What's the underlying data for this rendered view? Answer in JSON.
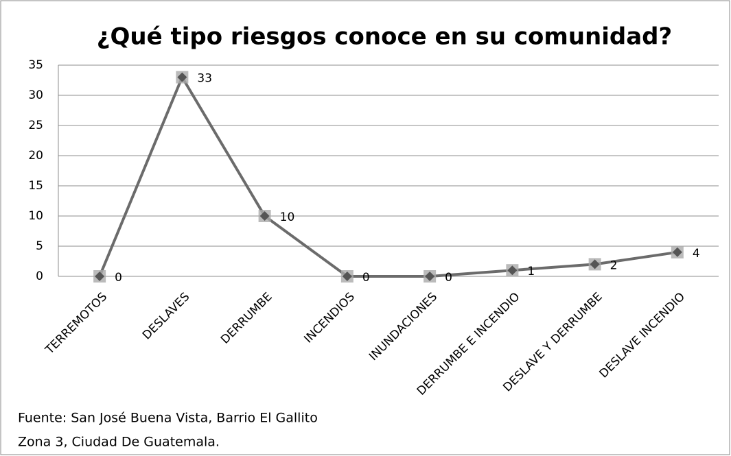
{
  "chart_data": {
    "type": "line",
    "title": "¿Qué tipo riesgos conoce en su comunidad?",
    "categories": [
      "TERREMOTOS",
      "DESLAVES",
      "DERRUMBE",
      "INCENDIOS",
      "INUNDACIONES",
      "DERRUMBE E INCENDIO",
      "DESLAVE Y DERRUMBE",
      "DESLAVE INCENDIO"
    ],
    "values": [
      0,
      33,
      10,
      0,
      0,
      1,
      2,
      4
    ],
    "color": "#6b6b6b",
    "ylim": [
      0,
      35
    ],
    "yticks": [
      0,
      5,
      10,
      15,
      20,
      25,
      30,
      35
    ],
    "grid": true,
    "notes": [
      "Fuente: San José Buena Vista, Barrio El Gallito",
      "Zona 3, Ciudad De Guatemala."
    ]
  }
}
